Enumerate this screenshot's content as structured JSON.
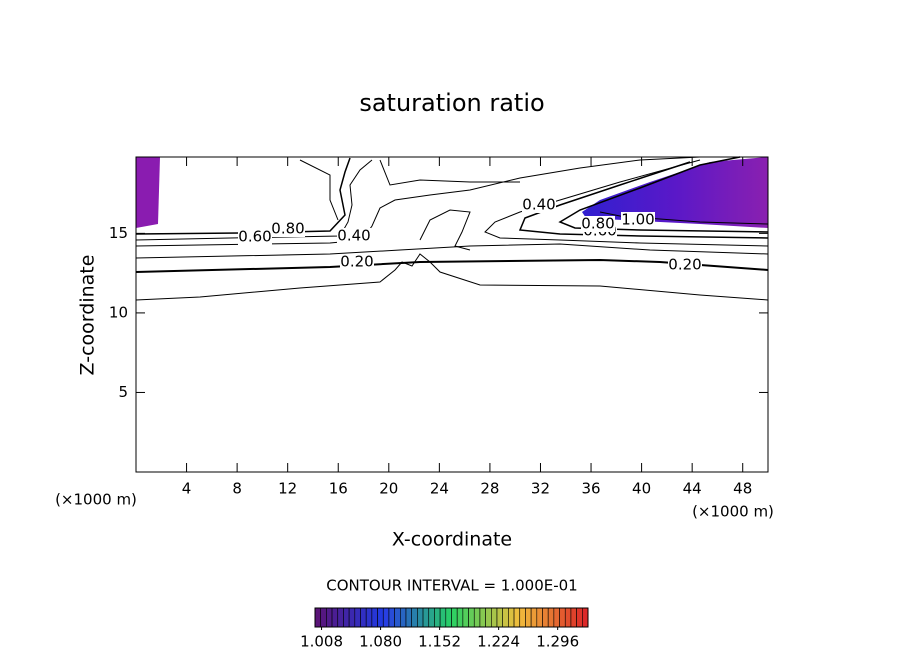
{
  "chart_data": {
    "type": "contour",
    "title": "saturation ratio",
    "x_label": "X-coordinate",
    "y_label": "Z-coordinate",
    "x_unit": "(×1000 m)",
    "y_unit": "(×1000 m)",
    "xlim": [
      0,
      50
    ],
    "xticks": [
      4,
      8,
      12,
      16,
      20,
      24,
      28,
      32,
      36,
      40,
      44,
      48
    ],
    "ylim": [
      0,
      19.8
    ],
    "yticks": [
      5,
      10,
      15
    ],
    "contour_levels": [
      {
        "value": 0.2,
        "label": "0.20"
      },
      {
        "value": 0.4,
        "label": "0.40"
      },
      {
        "value": 0.6,
        "label": "0.60"
      },
      {
        "value": 0.8,
        "label": "0.80"
      },
      {
        "value": 1.0,
        "label": "1.00"
      }
    ],
    "contour_interval_text": "CONTOUR INTERVAL = 1.000E-01",
    "colorbar": {
      "lim": [
        1.0,
        1.333
      ],
      "ticks": [
        1.008,
        {
          "value": 1.08,
          "label": "1.080"
        },
        1.152,
        1.224,
        1.296
      ]
    }
  }
}
